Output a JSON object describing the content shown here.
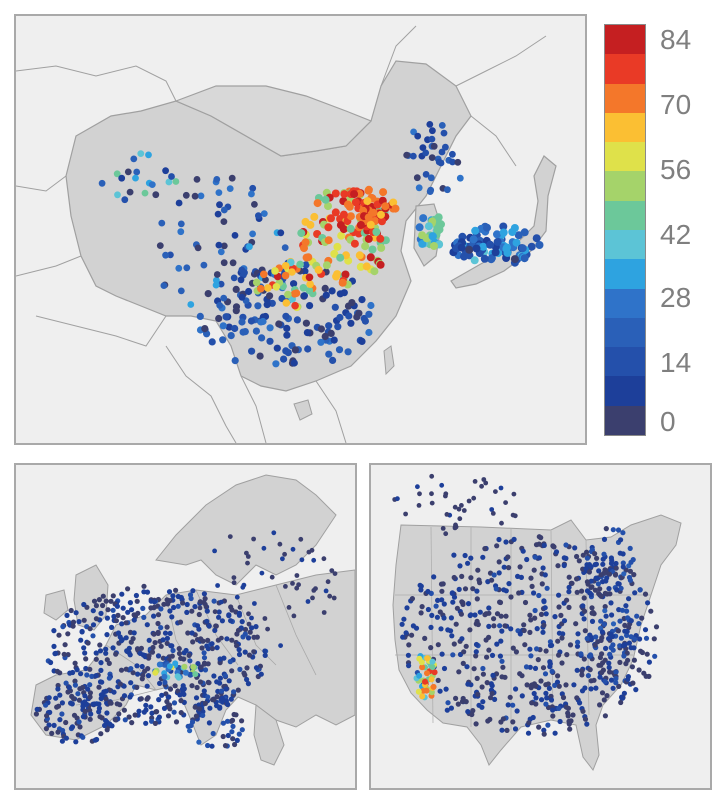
{
  "colorbar": {
    "min": 0,
    "max": 90,
    "ticks": [
      "84",
      "70",
      "56",
      "42",
      "28",
      "14",
      "0"
    ],
    "colors": [
      "#3b3f6e",
      "#1d3f9a",
      "#2450ab",
      "#2a60b8",
      "#2f73c9",
      "#2ea3e0",
      "#5cc4d6",
      "#6cc89a",
      "#a5d36a",
      "#dfe14a",
      "#fbbf33",
      "#f4772a",
      "#e93a26",
      "#c51f21"
    ]
  },
  "maps": [
    {
      "region": "China / East Asia"
    },
    {
      "region": "Europe"
    },
    {
      "region": "United States"
    }
  ]
}
